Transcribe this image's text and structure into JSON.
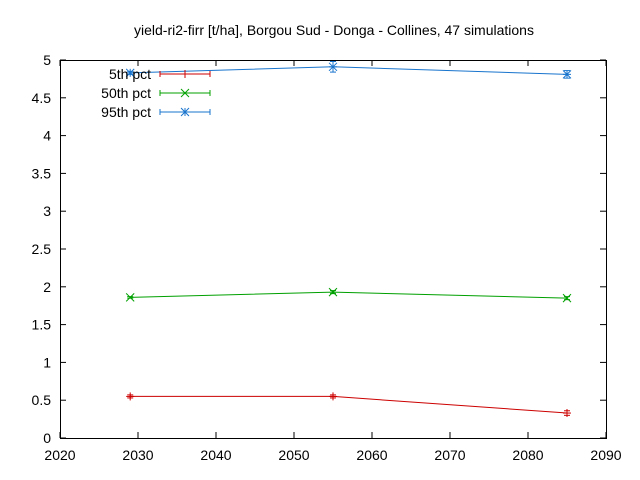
{
  "chart_data": {
    "type": "line",
    "title": "yield-ri2-firr [t/ha], Borgou Sud - Donga - Collines, 47 simulations",
    "xlabel": "",
    "ylabel": "",
    "xlim": [
      2020,
      2090
    ],
    "ylim": [
      0,
      5
    ],
    "x_ticks": [
      "2020",
      "2030",
      "2040",
      "2050",
      "2060",
      "2070",
      "2080",
      "2090"
    ],
    "y_ticks": [
      "0",
      "0.5",
      "1",
      "1.5",
      "2",
      "2.5",
      "3",
      "3.5",
      "4",
      "4.5",
      "5"
    ],
    "legend_position": "top-left",
    "grid": false,
    "series": [
      {
        "name": "5th pct",
        "color": "#cc0000",
        "marker": "plus",
        "x": [
          2029,
          2055,
          2085
        ],
        "y": [
          0.55,
          0.55,
          0.33
        ],
        "err": [
          0.02,
          0.02,
          0.03
        ]
      },
      {
        "name": "50th pct",
        "color": "#00a000",
        "marker": "cross",
        "x": [
          2029,
          2055,
          2085
        ],
        "y": [
          1.86,
          1.93,
          1.85
        ],
        "err": [
          0.01,
          0.02,
          0.02
        ]
      },
      {
        "name": "95th pct",
        "color": "#1874cd",
        "marker": "star",
        "x": [
          2029,
          2055,
          2085
        ],
        "y": [
          4.83,
          4.91,
          4.81
        ],
        "err": [
          0.02,
          0.07,
          0.05
        ]
      }
    ]
  }
}
